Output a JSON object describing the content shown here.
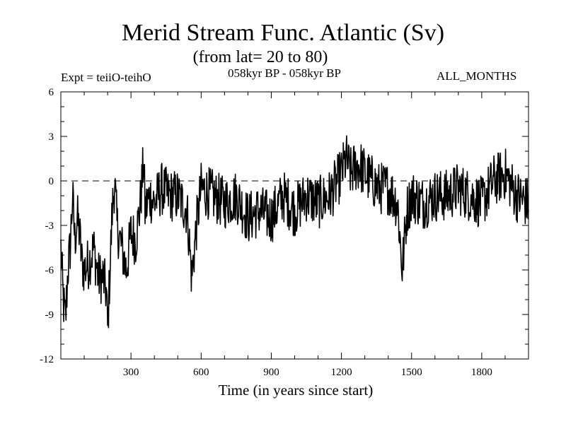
{
  "header": {
    "title": "Merid Stream Func. Atlantic (Sv)",
    "subtitle": "(from lat= 20 to 80)",
    "expt": "Expt = teiiO-teihO",
    "period": "058kyr BP - 058kyr BP",
    "months": "ALL_MONTHS"
  },
  "chart_data": {
    "type": "line",
    "title": "Merid Stream Func. Atlantic (Sv)",
    "subtitle": "(from lat= 20 to 80)",
    "xlabel": "Time (in years since start)",
    "ylabel": "",
    "xlim": [
      0,
      2000
    ],
    "ylim": [
      -12,
      6
    ],
    "x_ticks": [
      300,
      600,
      900,
      1200,
      1500,
      1800
    ],
    "y_ticks": [
      -12,
      -9,
      -6,
      -3,
      0,
      3,
      6
    ],
    "zero_line": "dashed",
    "grid": false,
    "legend": "none",
    "line_color": "#000000",
    "series": [
      {
        "x": [
          0,
          10,
          20,
          30,
          40,
          50,
          60,
          70,
          80,
          90,
          100,
          120,
          140,
          160,
          180,
          195,
          200,
          210,
          220,
          230,
          240,
          260,
          280,
          300,
          320,
          340,
          355,
          360,
          380,
          400,
          430,
          460,
          500,
          540,
          560,
          580,
          600,
          650,
          700,
          750,
          800,
          850,
          900,
          950,
          1000,
          1050,
          1100,
          1150,
          1200,
          1220,
          1240,
          1260,
          1280,
          1300,
          1330,
          1360,
          1400,
          1440,
          1460,
          1480,
          1500,
          1550,
          1600,
          1650,
          1700,
          1750,
          1800,
          1850,
          1900,
          1950,
          2000
        ],
        "y": [
          -4.5,
          -8,
          -9.5,
          -6,
          -4.5,
          -1,
          -4,
          -2.5,
          -3.5,
          -5.5,
          -6,
          -5.5,
          -4.5,
          -6.5,
          -6.5,
          -7.5,
          -10,
          -6,
          -2,
          0,
          -3,
          -4.5,
          -6,
          -3.5,
          -4,
          -1.5,
          1.5,
          -2,
          -1,
          -1.5,
          -0.5,
          -1,
          -1,
          -2,
          -6.5,
          -3,
          -0.5,
          -1,
          -1.5,
          -1,
          -2.5,
          -2,
          -2.5,
          -1,
          -2,
          -1,
          -1.5,
          -1,
          0.5,
          1.5,
          0.5,
          1,
          1,
          0.5,
          0,
          -0.5,
          -0.5,
          -1.5,
          -6,
          -2,
          -1,
          -1.5,
          -1,
          -1,
          -0.5,
          -1,
          -1.5,
          0,
          0.5,
          -1,
          -1.5
        ]
      }
    ]
  }
}
